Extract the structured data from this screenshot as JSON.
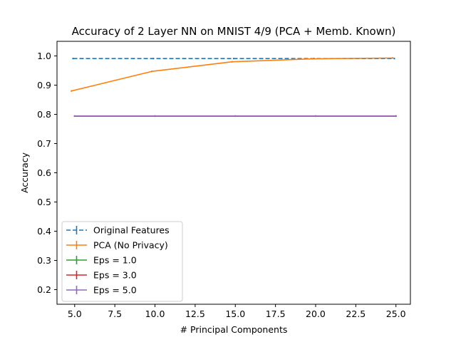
{
  "chart_data": {
    "type": "line",
    "title": "Accuracy of 2 Layer NN on MNIST 4/9 (PCA + Memb. Known)",
    "xlabel": "# Principal Components",
    "ylabel": "Accuracy",
    "xlim": [
      3.9,
      25.9
    ],
    "ylim": [
      0.15,
      1.05
    ],
    "xticks": [
      5.0,
      7.5,
      10.0,
      12.5,
      15.0,
      17.5,
      20.0,
      22.5,
      25.0
    ],
    "xtick_labels": [
      "5.0",
      "7.5",
      "10.0",
      "12.5",
      "15.0",
      "17.5",
      "20.0",
      "22.5",
      "25.0"
    ],
    "yticks": [
      0.2,
      0.3,
      0.4,
      0.5,
      0.6,
      0.7,
      0.8,
      0.9,
      1.0
    ],
    "ytick_labels": [
      "0.2",
      "0.3",
      "0.4",
      "0.5",
      "0.6",
      "0.7",
      "0.8",
      "0.9",
      "1.0"
    ],
    "grid": false,
    "legend_position": "lower-left",
    "series": [
      {
        "name": "Original Features",
        "color": "#1f77b4",
        "dashed": true,
        "x": [
          4.9,
          9.9,
          14.9,
          19.9,
          24.9
        ],
        "y": [
          0.991,
          0.991,
          0.991,
          0.991,
          0.991
        ]
      },
      {
        "name": "PCA (No Privacy)",
        "color": "#ff7f0e",
        "dashed": false,
        "x": [
          4.8,
          9.8,
          14.8,
          19.8,
          24.8
        ],
        "y": [
          0.88,
          0.947,
          0.98,
          0.99,
          0.993
        ]
      },
      {
        "name": "Eps = 1.0",
        "color": "#2ca02c",
        "dashed": false,
        "x": [
          5.0,
          10.0,
          15.0,
          20.0,
          25.0
        ],
        "y": [
          0.794,
          0.794,
          0.794,
          0.794,
          0.794
        ]
      },
      {
        "name": "Eps = 3.0",
        "color": "#d62728",
        "dashed": false,
        "x": [
          5.0,
          10.0,
          15.0,
          20.0,
          25.0
        ],
        "y": [
          0.794,
          0.794,
          0.794,
          0.794,
          0.794
        ]
      },
      {
        "name": "Eps = 5.0",
        "color": "#9467bd",
        "dashed": false,
        "x": [
          5.0,
          10.0,
          15.0,
          20.0,
          25.0
        ],
        "y": [
          0.794,
          0.794,
          0.794,
          0.794,
          0.794
        ]
      }
    ]
  }
}
